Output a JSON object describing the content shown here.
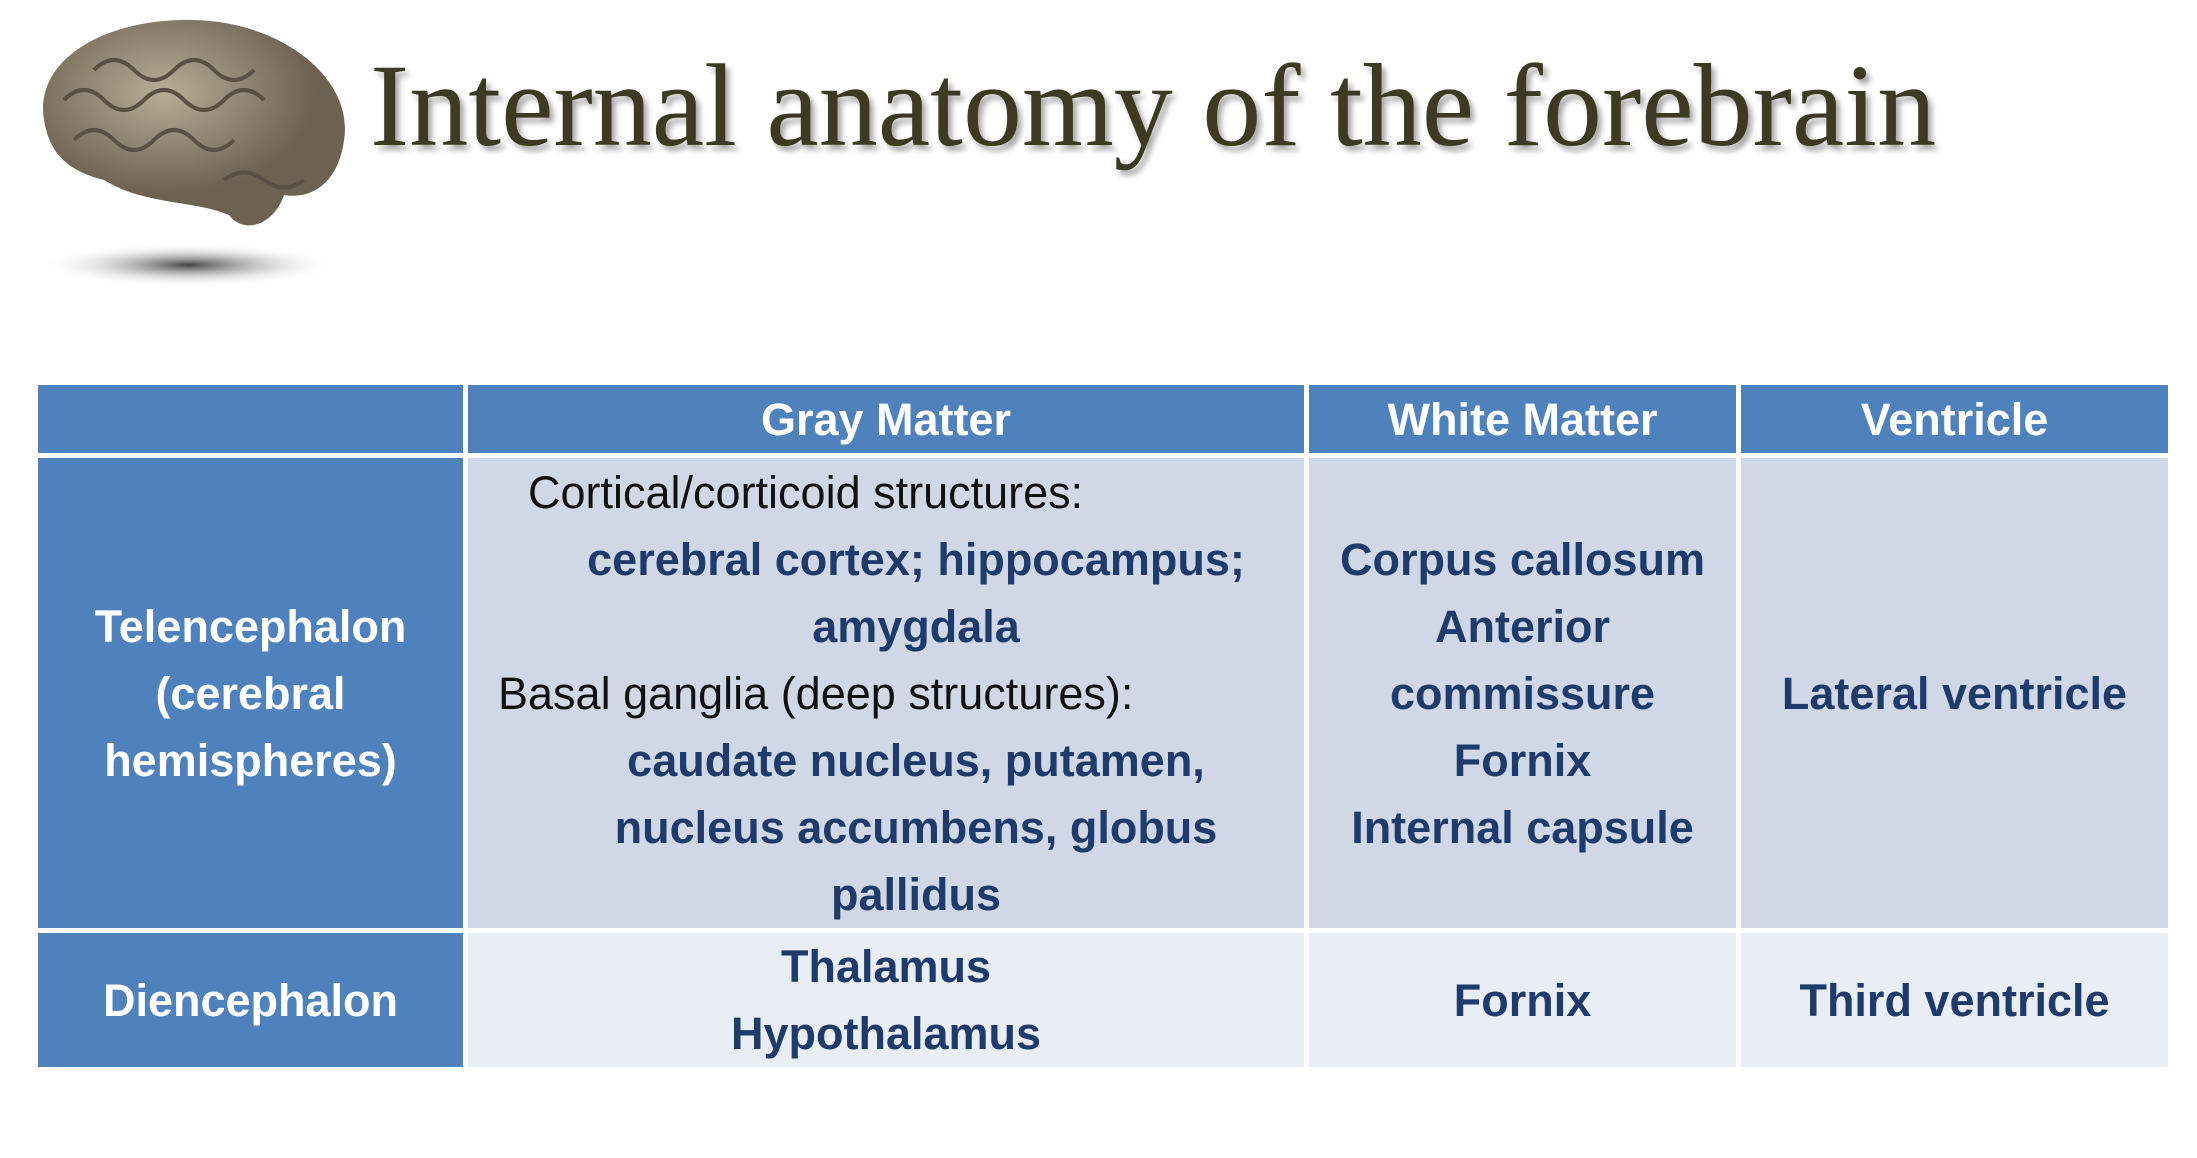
{
  "header": {
    "title": "Internal anatomy of the forebrain"
  },
  "table": {
    "columns": [
      "Gray Matter",
      "White Matter",
      "Ventricle"
    ],
    "rows": [
      {
        "label": "Telencephalon (cerebral hemispheres)",
        "gray_matter": [
          {
            "heading": "Cortical/corticoid structures:",
            "items": "cerebral cortex; hippocampus; amygdala"
          },
          {
            "heading": "Basal ganglia (deep structures):",
            "items": "caudate nucleus, putamen, nucleus accumbens, globus pallidus"
          }
        ],
        "white_matter": [
          "Corpus callosum",
          "Anterior commissure",
          "Fornix",
          "Internal capsule"
        ],
        "ventricle": "Lateral ventricle"
      },
      {
        "label": "Diencephalon",
        "gray_matter": [
          "Thalamus",
          "Hypothalamus"
        ],
        "white_matter": [
          "Fornix"
        ],
        "ventricle": "Third ventricle"
      }
    ]
  }
}
